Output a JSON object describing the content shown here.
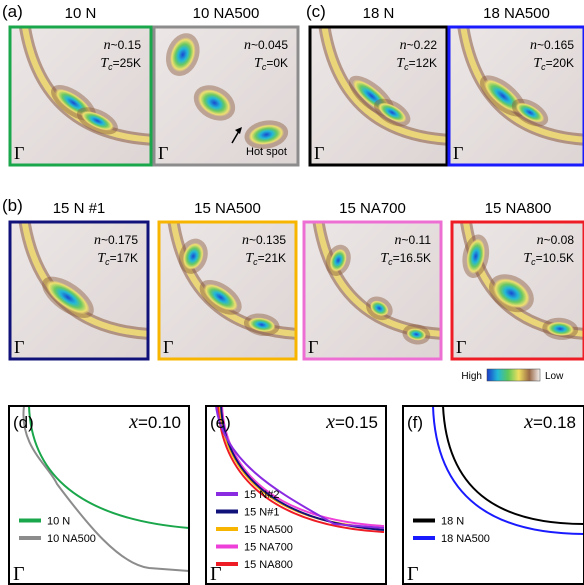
{
  "symbols": {
    "n": "n",
    "T": "T",
    "c": "c",
    "gamma": "Γ",
    "x": "x"
  },
  "panel_labels": {
    "a": "(a)",
    "b": "(b)",
    "c": "(c)",
    "d": "(d)",
    "e": "(e)",
    "f": "(f)"
  },
  "maps": [
    {
      "title": "10 N",
      "n": "~0.15",
      "tc": "=25K",
      "frame": "#1aa64a"
    },
    {
      "title": "10 NA500",
      "n": "~0.045",
      "tc": "=0K",
      "frame": "#8c8c8c",
      "annotation": "Hot spot"
    },
    {
      "title": "18 N",
      "n": "~0.22",
      "tc": "=12K",
      "frame": "#000000"
    },
    {
      "title": "18 NA500",
      "n": "~0.165",
      "tc": "=20K",
      "frame": "#1a1aff"
    },
    {
      "title": "15 N #1",
      "n": "~0.175",
      "tc": "=17K",
      "frame": "#10127a"
    },
    {
      "title": "15 NA500",
      "n": "~0.135",
      "tc": "=21K",
      "frame": "#f7b500"
    },
    {
      "title": "15 NA700",
      "n": "~0.11",
      "tc": "=16.5K",
      "frame": "#ee6fd3"
    },
    {
      "title": "15 NA800",
      "n": "~0.08",
      "tc": "=10.5K",
      "frame": "#ee1c24"
    }
  ],
  "colorbar": {
    "high": "High",
    "low": "Low"
  },
  "contours": [
    {
      "x_value": "=0.10",
      "legend": [
        {
          "name": "10 N",
          "color": "#1aa64a"
        },
        {
          "name": "10 NA500",
          "color": "#8c8c8c"
        }
      ]
    },
    {
      "x_value": "=0.15",
      "legend": [
        {
          "name": "15 N#2",
          "color": "#8a2be2"
        },
        {
          "name": "15 N#1",
          "color": "#10127a"
        },
        {
          "name": "15 NA500",
          "color": "#f7b500"
        },
        {
          "name": "15 NA700",
          "color": "#ee3fd8"
        },
        {
          "name": "15 NA800",
          "color": "#ee1c24"
        }
      ]
    },
    {
      "x_value": "=0.18",
      "legend": [
        {
          "name": "18 N",
          "color": "#000000"
        },
        {
          "name": "18 NA500",
          "color": "#1a1aff"
        }
      ]
    }
  ]
}
